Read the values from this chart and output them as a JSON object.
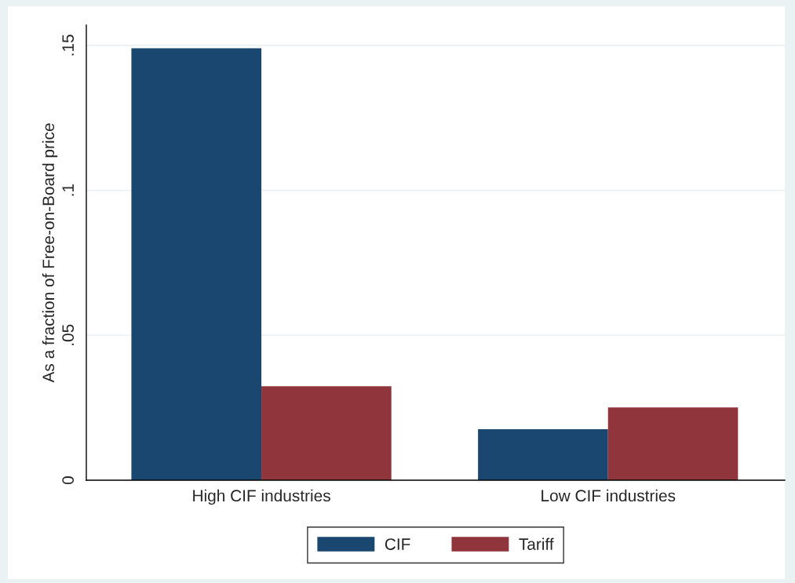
{
  "chart_data": {
    "type": "bar",
    "ylabel": "As a fraction of Free-on-Board price",
    "categories": [
      "High CIF industries",
      "Low CIF industries"
    ],
    "series": [
      {
        "name": "CIF",
        "color": "#1a476f",
        "values": [
          0.149,
          0.0176
        ]
      },
      {
        "name": "Tariff",
        "color": "#90353b",
        "values": [
          0.0324,
          0.0251
        ]
      }
    ],
    "ylim": [
      0,
      0.157
    ],
    "yticks": [
      {
        "value": 0,
        "label": "0"
      },
      {
        "value": 0.05,
        "label": ".05"
      },
      {
        "value": 0.1,
        "label": ".1"
      },
      {
        "value": 0.15,
        "label": ".15"
      }
    ],
    "grid": "y",
    "legend": "bottom"
  }
}
